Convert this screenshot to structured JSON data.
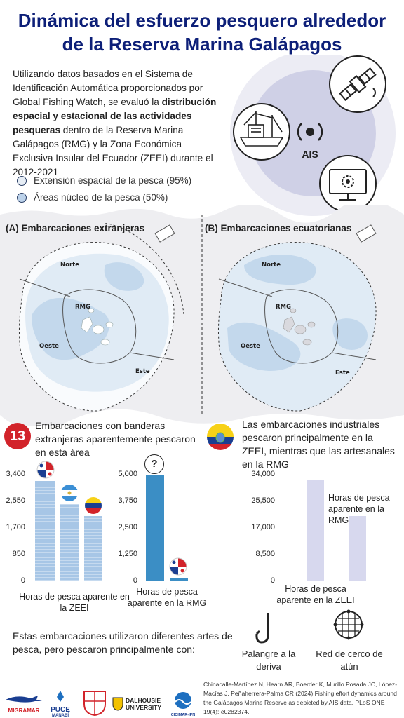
{
  "title": {
    "line1": "Dinámica del esfuerzo pesquero alrededor",
    "line2": "de la Reserva Marina Galápagos"
  },
  "intro": {
    "part1": "Utilizando datos basados en el Sistema de Identificación Automática proporcionados por Global Fishing Watch, se evaluó la ",
    "bold": "distribución espacial y estacional de las actividades pesqueras",
    "part2": " dentro de la Reserva Marina Galápagos (RMG) y la Zona Económica Exclusiva Insular del Ecuador (ZEEI) durante el 2012-2021"
  },
  "ais_label": "AIS",
  "legend": [
    {
      "label": "Extensión espacial de la pesca (95%)",
      "color": "#e6edf5"
    },
    {
      "label": "Áreas núcleo de la pesca (50%)",
      "color": "#bcd2ea"
    }
  ],
  "maps": [
    {
      "heading": "(A) Embarcaciones extranjeras",
      "norte": "Norte",
      "rmg": "RMG",
      "oeste": "Oeste",
      "este": "Este"
    },
    {
      "heading": "(B) Embarcaciones ecuatorianas",
      "norte": "Norte",
      "rmg": "RMG",
      "oeste": "Oeste",
      "este": "Este"
    }
  ],
  "foreign": {
    "count": "13",
    "text": "Embarcaciones con banderas extranjeras aparentemente pescaron en esta área",
    "unknown_symbol": "?"
  },
  "ecuador_text": "Las embarcaciones industriales pescaron principalmente en la ZEEI, mientras que las artesanales en la RMG",
  "chart_data": [
    {
      "type": "bar",
      "ylim": [
        0,
        3400
      ],
      "yticks": [
        "3,400",
        "2,550",
        "1,700",
        "850",
        "0"
      ],
      "categories": [
        "Panamá",
        "Nicaragua",
        "Venezuela"
      ],
      "values": [
        3220,
        2460,
        2080
      ],
      "xlabel": "Horas de pesca aparente en la ZEEI"
    },
    {
      "type": "bar",
      "ylim": [
        0,
        5000
      ],
      "yticks": [
        "5,000",
        "3,750",
        "2,500",
        "1,250",
        "0"
      ],
      "categories": [
        "Desconocido",
        "Panamá"
      ],
      "values": [
        5000,
        120
      ],
      "xlabel": "Horas de pesca aparente en la RMG"
    },
    {
      "type": "bar",
      "ylim": [
        0,
        34000
      ],
      "yticks": [
        "34,000",
        "25,500",
        "17,000",
        "8,500",
        "0"
      ],
      "categories": [
        "Industrial",
        "Artesanal"
      ],
      "values": [
        32500,
        20800
      ],
      "xlabel": "Horas de pesca aparente en la ZEEI",
      "annotation": "Horas de pesca aparente en la RMG"
    }
  ],
  "gear": {
    "text": "Estas embarcaciones utilizaron diferentes artes de pesca, pero pescaron principalmente con:",
    "longline": "Palangre a la deriva",
    "purse": "Red de cerco de atún"
  },
  "citation": "Chinacalle-Martínez N, Hearn AR, Boerder K, Murillo Posada JC, López-Macías J, Peñaherrera-Palma CR (2024) Fishing effort dynamics around the Galápagos Marine Reserve as depicted by AIS data. PLoS ONE 19(4): e0282374.",
  "logos": {
    "migramar": "MIGRAMAR",
    "puce": "PUCE",
    "puce_sub": "MANABÍ",
    "dalhousie1": "DALHOUSIE",
    "dalhousie2": "UNIVERSITY",
    "cicimar": "CICIMAR-IPN"
  },
  "colors": {
    "title": "#0d1f78",
    "bar_blue": "#3b8ec5",
    "bar_light": "#a7c6e6",
    "bar_lavender": "#d7d8ee",
    "count_badge": "#d2232a",
    "map_outer": "#e0ebf5",
    "map_core": "#c3d8ec"
  }
}
